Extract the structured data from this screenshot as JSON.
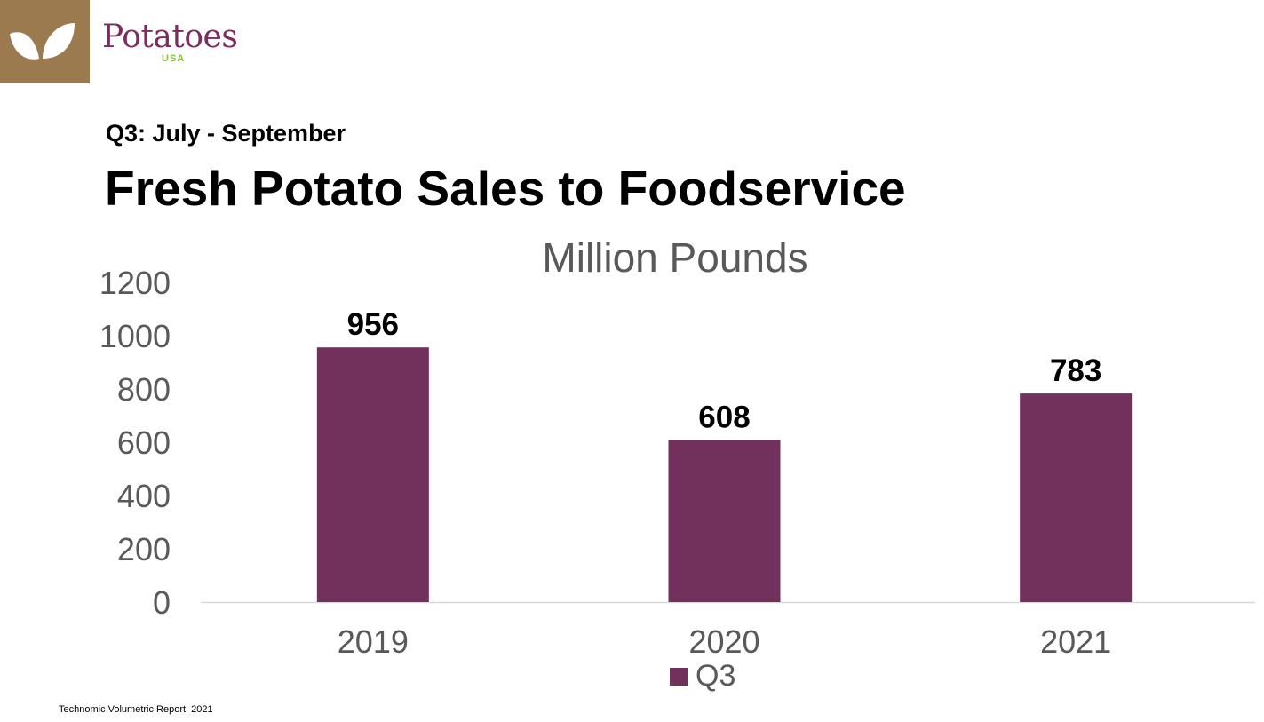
{
  "header": {
    "logo_text": "Potatoes",
    "logo_sub": "USA",
    "subtitle": "Q3: July - September",
    "title": "Fresh Potato Sales to Foodservice"
  },
  "footnote": "Technomic Volumetric Report, 2021",
  "colors": {
    "brand_block": "#9c7a50",
    "bar": "#72305c",
    "logo_text": "#7b2d5f",
    "logo_accent": "#8cbf3f",
    "axis_text": "#595959"
  },
  "icons": {
    "brand": "leaf-icon"
  },
  "chart_data": {
    "type": "bar",
    "title": "Million Pounds",
    "xlabel": "",
    "ylabel": "",
    "categories": [
      "2019",
      "2020",
      "2021"
    ],
    "series": [
      {
        "name": "Q3",
        "values": [
          956,
          608,
          783
        ]
      }
    ],
    "ylim": [
      0,
      1200
    ],
    "yticks": [
      0,
      200,
      400,
      600,
      800,
      1000,
      1200
    ],
    "data_labels": [
      "956",
      "608",
      "783"
    ],
    "grid": false,
    "legend": "bottom"
  }
}
